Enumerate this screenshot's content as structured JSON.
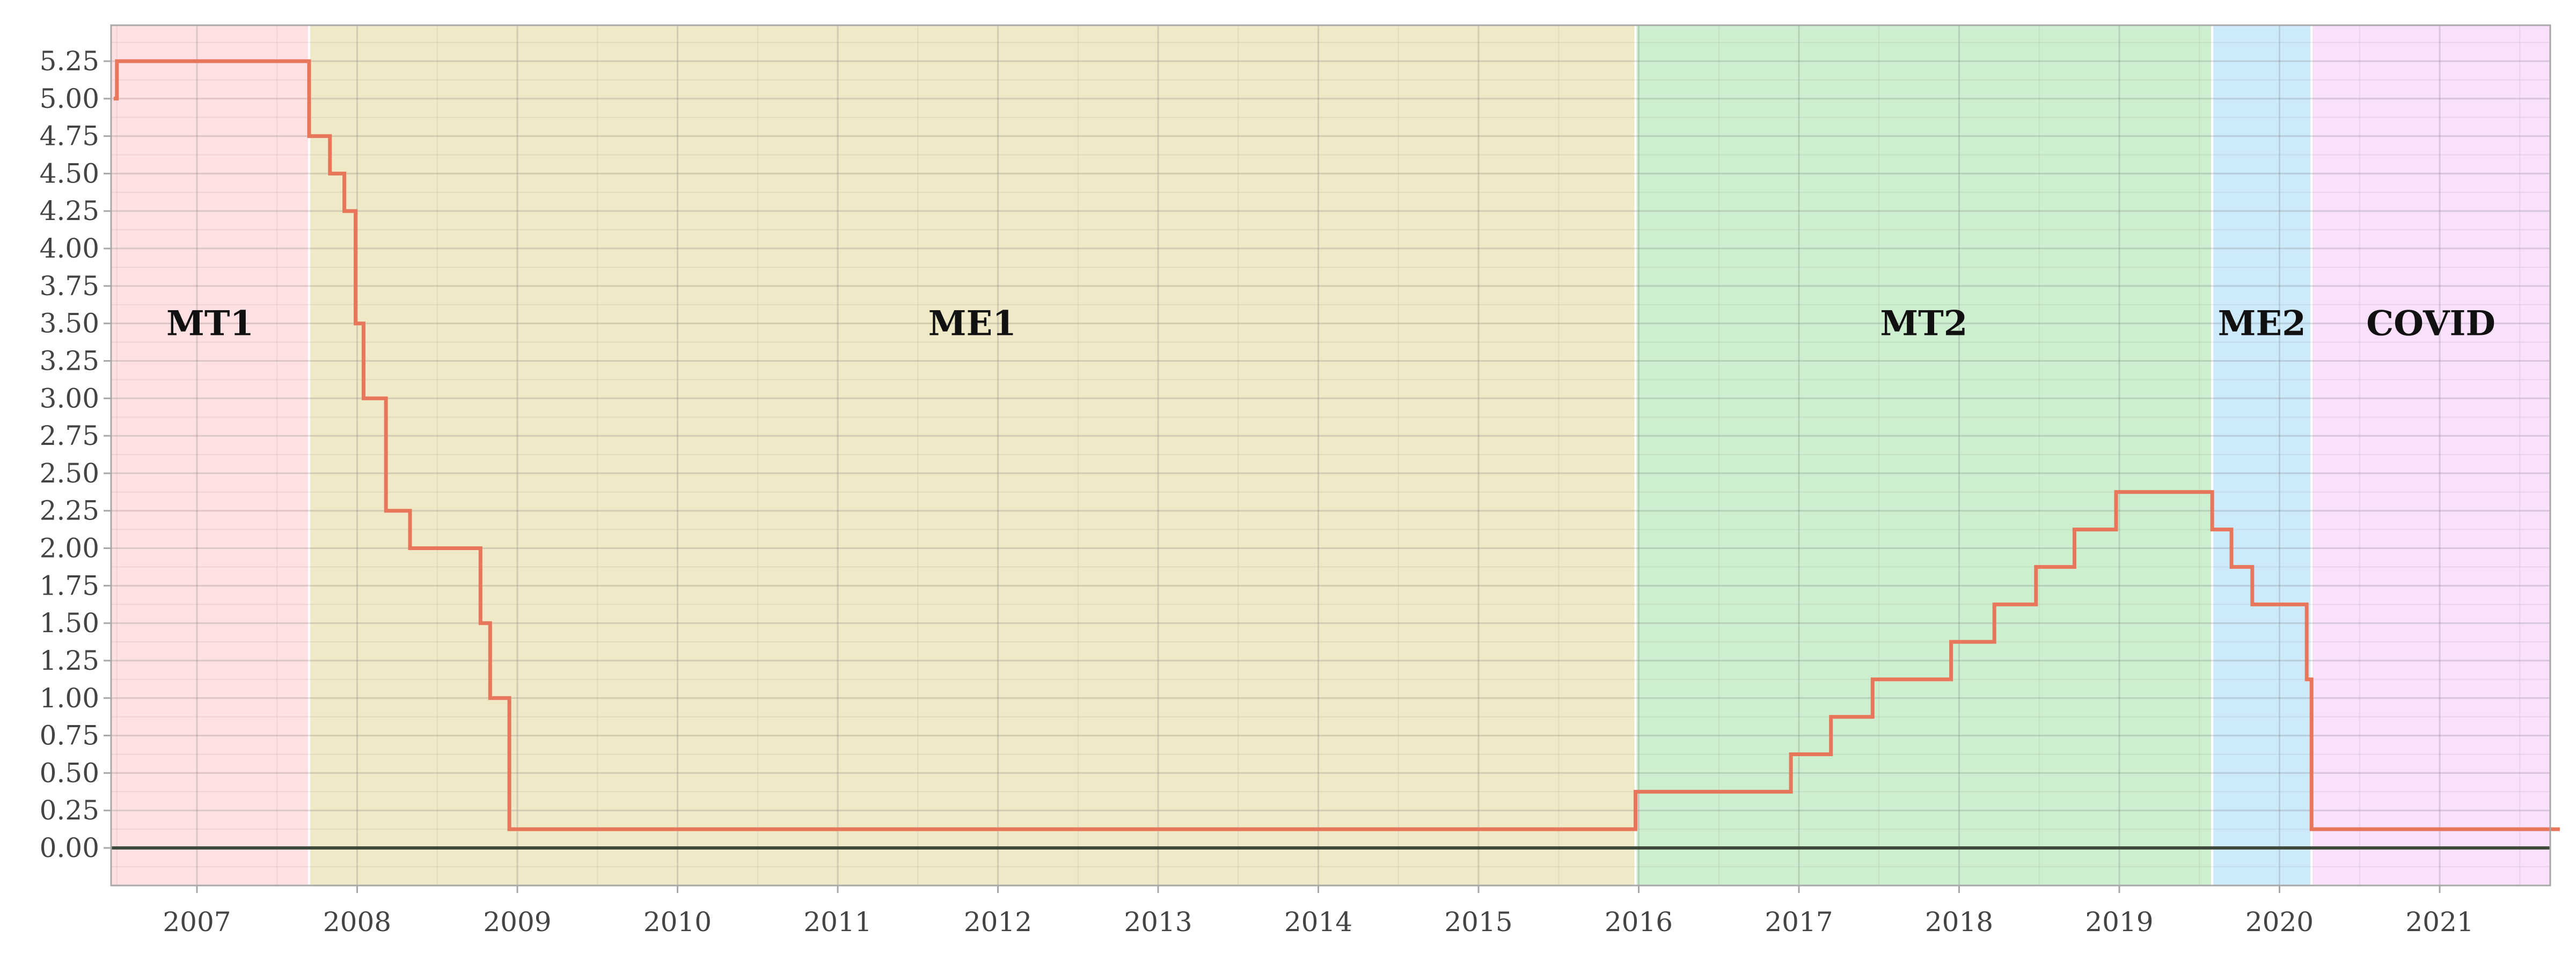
{
  "chart_data": {
    "type": "line",
    "title": "",
    "xlabel": "",
    "ylabel": "",
    "xlim": [
      2006.45,
      2021.75
    ],
    "ylim": [
      -0.25,
      5.5
    ],
    "y_ticks": [
      0,
      0.25,
      0.5,
      0.75,
      1,
      1.25,
      1.5,
      1.75,
      2,
      2.25,
      2.5,
      2.75,
      3,
      3.25,
      3.5,
      3.75,
      4,
      4.25,
      4.5,
      4.75,
      5,
      5.25
    ],
    "y_tick_labels": [
      "0.00",
      "0.25",
      "0.50",
      "0.75",
      "1.00",
      "1.25",
      "1.50",
      "1.75",
      "2.00",
      "2.25",
      "2.50",
      "2.75",
      "3.00",
      "3.25",
      "3.50",
      "3.75",
      "4.00",
      "4.25",
      "4.50",
      "4.75",
      "5.00",
      "5.25"
    ],
    "x_ticks": [
      2007,
      2008,
      2009,
      2010,
      2011,
      2012,
      2013,
      2014,
      2015,
      2016,
      2017,
      2018,
      2019,
      2020,
      2021
    ],
    "x_tick_labels": [
      "2007",
      "2008",
      "2009",
      "2010",
      "2011",
      "2012",
      "2013",
      "2014",
      "2015",
      "2016",
      "2017",
      "2018",
      "2019",
      "2020",
      "2021"
    ],
    "grid": true,
    "legend": "none",
    "regions": [
      {
        "label": "MT1",
        "start": 2006.45,
        "end": 2007.7,
        "color": "#ffe0e3"
      },
      {
        "label": "ME1",
        "start": 2007.7,
        "end": 2015.98,
        "color": "#f0e9c7"
      },
      {
        "label": "MT2",
        "start": 2015.98,
        "end": 2019.58,
        "color": "#cdefcf"
      },
      {
        "label": "ME2",
        "start": 2019.58,
        "end": 2020.2,
        "color": "#cdeafb"
      },
      {
        "label": "COVID",
        "start": 2020.2,
        "end": 2021.75,
        "color": "#f9e0fb"
      }
    ],
    "series": [
      {
        "color": "#e8765a",
        "step": true,
        "x": [
          2006.48,
          2006.5,
          2007.7,
          2007.83,
          2007.92,
          2007.99,
          2008.04,
          2008.08,
          2008.18,
          2008.33,
          2008.77,
          2008.83,
          2008.95,
          2015.98,
          2016.95,
          2017.2,
          2017.46,
          2017.95,
          2018.22,
          2018.48,
          2018.72,
          2018.98,
          2019.58,
          2019.7,
          2019.83,
          2020.17,
          2020.2,
          2021.75
        ],
        "y": [
          5.0,
          5.25,
          4.75,
          4.5,
          4.25,
          3.5,
          3.0,
          3.0,
          2.25,
          2.0,
          1.5,
          1.0,
          0.125,
          0.375,
          0.625,
          0.875,
          1.125,
          1.375,
          1.625,
          1.875,
          2.125,
          2.375,
          2.125,
          1.875,
          1.625,
          1.125,
          0.125,
          0.125
        ]
      }
    ],
    "reference_line": {
      "y": 0,
      "color": "#3f4a3c"
    }
  }
}
